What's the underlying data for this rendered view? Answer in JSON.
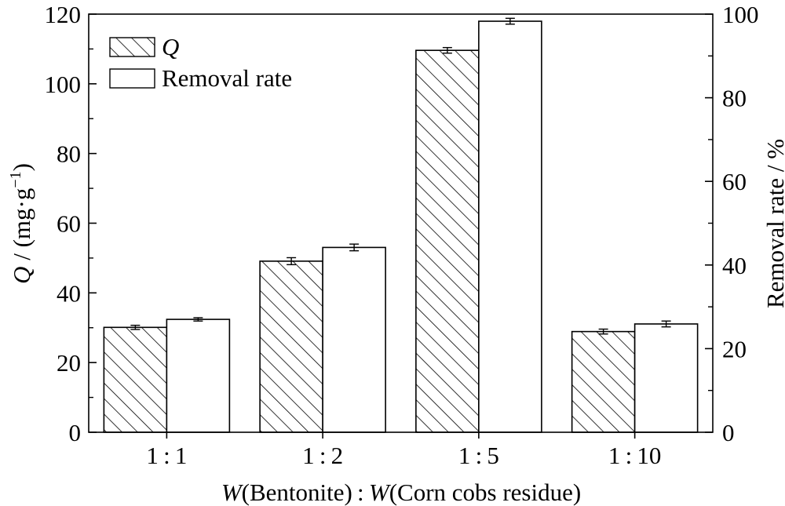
{
  "chart_data": {
    "type": "bar",
    "categories": [
      "1 : 1",
      "1 : 2",
      "1 : 5",
      "1 : 10"
    ],
    "series": [
      {
        "name": "Q",
        "axis": "left",
        "pattern": "diagonal-hatch",
        "values": [
          30.1,
          49.1,
          109.6,
          28.9
        ],
        "errors": [
          0.6,
          1.0,
          0.8,
          0.7
        ]
      },
      {
        "name": "Removal rate",
        "axis": "right",
        "pattern": "white",
        "values": [
          27.0,
          44.2,
          98.3,
          25.9
        ],
        "errors": [
          0.4,
          0.8,
          0.7,
          0.7
        ]
      }
    ],
    "xlabel": {
      "w1": "W",
      "t1": "(Bentonite) : ",
      "w2": "W",
      "t2": "(Corn cobs residue)"
    },
    "ylabel_left": {
      "q": "Q",
      "rest": " / (mg·g",
      "sup": "−1",
      "close": ")"
    },
    "ylabel_right": "Removal rate / %",
    "ylim_left": [
      0,
      120
    ],
    "yticks_left": [
      0,
      20,
      40,
      60,
      80,
      100,
      120
    ],
    "ylim_right": [
      0,
      100
    ],
    "yticks_right": [
      0,
      20,
      40,
      60,
      80,
      100
    ],
    "legend_placement": "top-left",
    "grid": false
  }
}
